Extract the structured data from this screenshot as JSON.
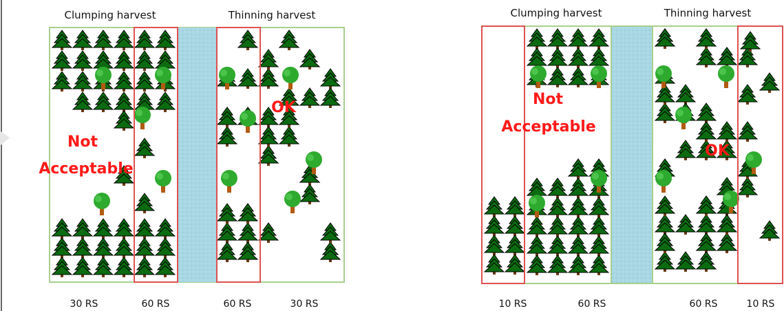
{
  "panels": [
    {
      "headers": [
        "Clumping harvest",
        "Thinning harvest"
      ],
      "not_acceptable": [
        "Not",
        "Acceptable"
      ],
      "ok": "OK",
      "bottom_labels": [
        "30 RS",
        "60 RS",
        "60 RS",
        "30 RS"
      ]
    },
    {
      "headers": [
        "Clumping harvest",
        "Thinning harvest"
      ],
      "not_acceptable": [
        "Not",
        "Acceptable"
      ],
      "ok": "OK",
      "bottom_labels": [
        "10 RS",
        "60 RS",
        "60 RS",
        "10 RS"
      ]
    }
  ]
}
